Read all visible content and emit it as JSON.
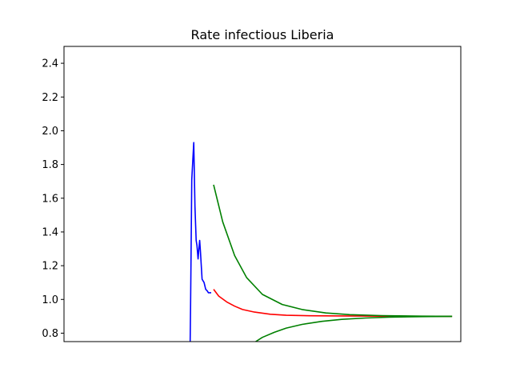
{
  "chart_data": {
    "type": "line",
    "title": "Rate infectious Liberia",
    "xlabel": "",
    "ylabel": "",
    "ylim": [
      0.75,
      2.5
    ],
    "xlim": [
      0,
      100
    ],
    "x_ticks_visible": false,
    "y_ticks": [
      "0.8",
      "1.0",
      "1.2",
      "1.4",
      "1.6",
      "1.8",
      "2.0",
      "2.2",
      "2.4"
    ],
    "y_tick_values": [
      0.8,
      1.0,
      1.2,
      1.4,
      1.6,
      1.8,
      2.0,
      2.2,
      2.4
    ],
    "grid": false,
    "legend": "none",
    "series": [
      {
        "color": "#0000ff",
        "x": [
          31.8,
          31.9,
          32.0,
          32.2,
          32.7,
          33.0,
          33.3,
          33.5,
          33.8,
          34.0,
          34.2,
          34.4,
          34.6,
          34.8,
          35.3,
          35.7,
          36.1,
          36.4,
          37.1
        ],
        "y": [
          0.75,
          0.95,
          1.2,
          1.71,
          1.93,
          1.55,
          1.35,
          1.32,
          1.24,
          1.3,
          1.35,
          1.28,
          1.2,
          1.12,
          1.1,
          1.06,
          1.05,
          1.04,
          1.04
        ]
      },
      {
        "color": "#ff0000",
        "x": [
          37.7,
          39,
          41,
          43,
          45,
          48,
          52,
          56,
          62,
          70,
          80,
          90,
          97.8
        ],
        "y": [
          1.06,
          1.02,
          0.985,
          0.96,
          0.94,
          0.925,
          0.912,
          0.906,
          0.903,
          0.902,
          0.901,
          0.9,
          0.9
        ]
      },
      {
        "color": "#008000",
        "x": [
          37.7,
          40,
          43,
          46,
          50,
          55,
          60,
          66,
          72,
          80,
          90,
          97.8
        ],
        "y": [
          1.68,
          1.46,
          1.26,
          1.13,
          1.03,
          0.97,
          0.94,
          0.92,
          0.91,
          0.904,
          0.901,
          0.9
        ]
      },
      {
        "color": "#008000",
        "x": [
          48.3,
          50,
          53,
          56,
          60,
          65,
          70,
          76,
          82,
          90,
          97.8
        ],
        "y": [
          0.75,
          0.775,
          0.805,
          0.83,
          0.852,
          0.87,
          0.882,
          0.89,
          0.895,
          0.898,
          0.9
        ]
      }
    ]
  }
}
